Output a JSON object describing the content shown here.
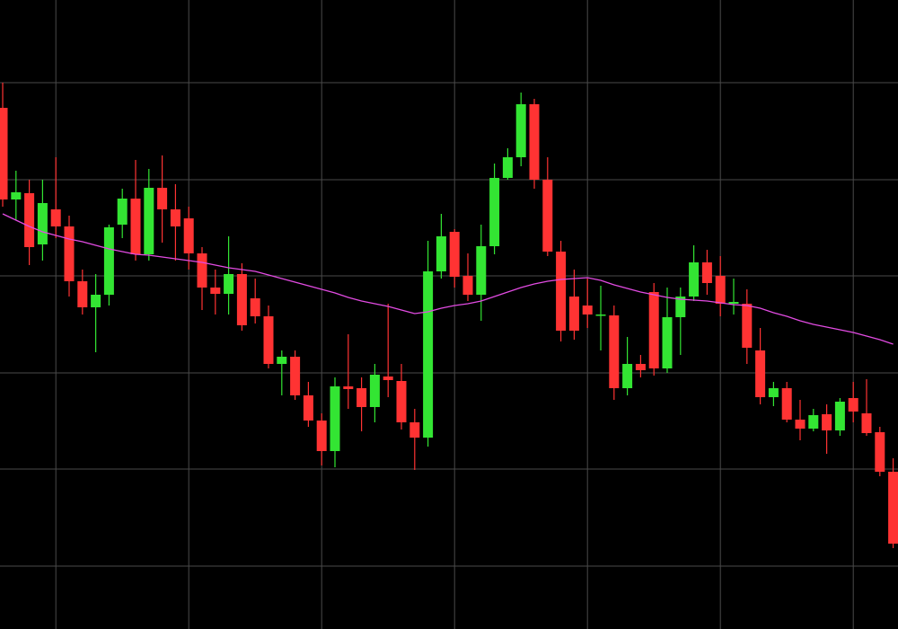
{
  "chart_data": {
    "type": "candlestick",
    "categories": [
      null,
      null,
      null,
      null,
      null,
      null,
      null,
      null,
      null,
      null,
      null,
      null,
      null,
      null,
      null,
      null,
      null,
      null,
      null,
      null,
      null,
      null,
      null,
      null,
      null,
      null,
      null,
      null,
      null,
      null,
      null,
      null,
      null,
      null,
      null,
      null,
      null,
      null,
      null,
      null,
      null,
      null,
      null,
      null,
      null,
      null,
      null,
      null,
      null,
      null,
      null,
      null,
      null,
      null,
      null,
      null,
      null,
      null,
      null,
      null,
      null,
      null,
      null,
      null,
      null,
      null,
      null,
      null
    ],
    "open": [
      580,
      478,
      485,
      428,
      467,
      448,
      387,
      358,
      372,
      450,
      479,
      417,
      491,
      467,
      457,
      418,
      380,
      373,
      395,
      368,
      348,
      295,
      303,
      260,
      232,
      198,
      270,
      268,
      247,
      281,
      276,
      230,
      213,
      398,
      442,
      393,
      372,
      426,
      502,
      525,
      584,
      500,
      420,
      370,
      360,
      349,
      349,
      268,
      295,
      375,
      290,
      347,
      370,
      408,
      393,
      362,
      362,
      310,
      258,
      268,
      233,
      223,
      239,
      221,
      257,
      240,
      219,
      175
    ],
    "high": [
      608,
      510,
      500,
      500,
      525,
      460,
      400,
      395,
      450,
      490,
      522,
      512,
      527,
      495,
      470,
      425,
      400,
      437,
      407,
      390,
      360,
      310,
      310,
      275,
      240,
      280,
      328,
      280,
      295,
      362,
      295,
      245,
      432,
      462,
      445,
      418,
      450,
      518,
      535,
      597,
      590,
      525,
      432,
      400,
      390,
      382,
      360,
      325,
      305,
      385,
      380,
      380,
      427,
      422,
      415,
      390,
      378,
      335,
      275,
      275,
      255,
      245,
      250,
      257,
      275,
      278,
      225,
      190
    ],
    "low": [
      470,
      455,
      405,
      410,
      435,
      370,
      350,
      308,
      360,
      435,
      410,
      410,
      430,
      410,
      400,
      355,
      350,
      350,
      332,
      340,
      290,
      260,
      255,
      225,
      182,
      180,
      245,
      220,
      230,
      258,
      222,
      177,
      203,
      390,
      380,
      365,
      343,
      417,
      500,
      515,
      490,
      415,
      320,
      322,
      335,
      310,
      255,
      260,
      280,
      282,
      285,
      305,
      365,
      372,
      348,
      350,
      295,
      250,
      248,
      230,
      210,
      220,
      195,
      215,
      230,
      215,
      170,
      90
    ],
    "close": [
      478,
      486,
      425,
      474,
      448,
      387,
      358,
      372,
      447,
      479,
      417,
      491,
      467,
      448,
      418,
      380,
      373,
      395,
      338,
      348,
      295,
      303,
      260,
      232,
      198,
      270,
      267,
      247,
      283,
      277,
      230,
      213,
      398,
      437,
      392,
      372,
      426,
      502,
      525,
      584,
      500,
      420,
      332,
      332,
      350,
      350,
      268,
      295,
      288,
      290,
      347,
      370,
      408,
      385,
      362,
      364,
      313,
      258,
      268,
      233,
      223,
      238,
      221,
      253,
      242,
      218,
      175,
      95
    ],
    "ma": [
      462,
      455,
      448,
      442,
      438,
      434,
      431,
      427,
      423,
      420,
      417,
      416,
      414,
      412,
      410,
      408,
      405,
      402,
      400,
      398,
      394,
      390,
      386,
      382,
      378,
      374,
      369,
      365,
      362,
      359,
      355,
      351,
      353,
      357,
      360,
      362,
      365,
      370,
      375,
      380,
      384,
      387,
      389,
      390,
      391,
      388,
      383,
      379,
      375,
      372,
      369,
      367,
      366,
      365,
      363,
      361,
      360,
      357,
      352,
      348,
      343,
      339,
      336,
      333,
      330,
      326,
      322,
      317
    ],
    "up_color": "#33e533",
    "down_color": "#ff3333",
    "ma_color": "#e24be2",
    "ylim": [
      0,
      700
    ],
    "yticks": [
      608,
      500,
      393,
      285,
      178,
      70
    ],
    "xticks": [
      4,
      14,
      24,
      34,
      44,
      54,
      64
    ],
    "grid": true,
    "grid_color": "#4a4a4a"
  }
}
